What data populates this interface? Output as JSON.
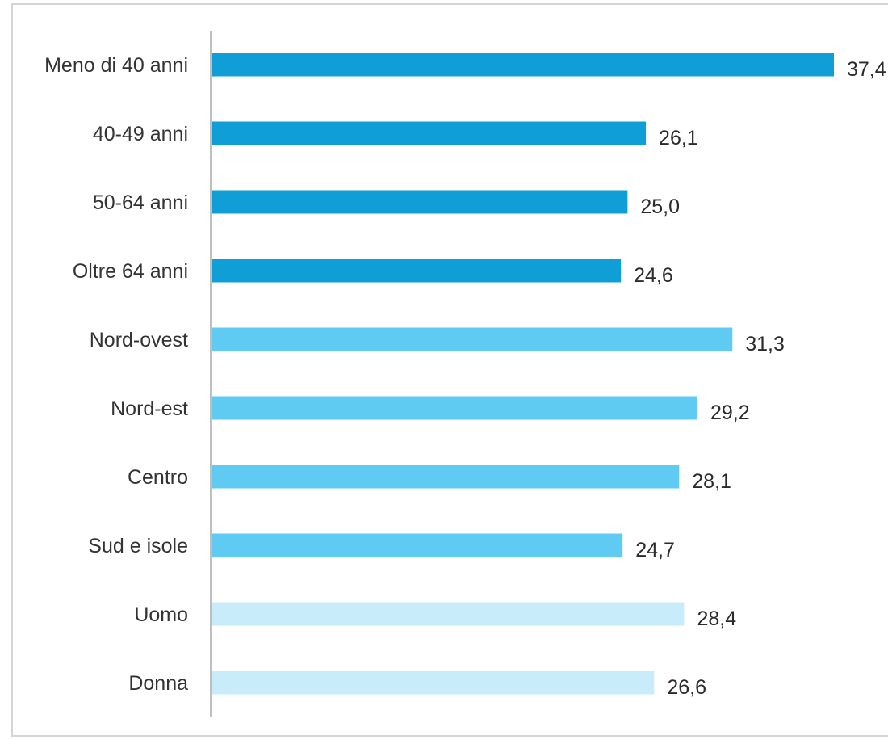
{
  "chart_data": {
    "type": "bar",
    "orientation": "horizontal",
    "title": "",
    "xlabel": "",
    "ylabel": "",
    "xlim": [
      0,
      37.4
    ],
    "grid": false,
    "legend": "none",
    "categories": [
      "Meno di 40 anni",
      "40-49 anni",
      "50-64 anni",
      "Oltre 64 anni",
      "Nord-ovest",
      "Nord-est",
      "Centro",
      "Sud e isole",
      "Uomo",
      "Donna"
    ],
    "values": [
      37.4,
      26.1,
      25.0,
      24.6,
      31.3,
      29.2,
      28.1,
      24.7,
      28.4,
      26.6
    ],
    "value_labels": [
      "37,4",
      "26,1",
      "25,0",
      "24,6",
      "31,3",
      "29,2",
      "28,1",
      "24,7",
      "28,4",
      "26,6"
    ],
    "group_colors": [
      "#0f9fd6",
      "#0f9fd6",
      "#0f9fd6",
      "#0f9fd6",
      "#5fcbf3",
      "#5fcbf3",
      "#5fcbf3",
      "#5fcbf3",
      "#c9ecfa",
      "#c9ecfa"
    ],
    "axis_color": "#bfbfbf",
    "frame_color": "#d4d4d4"
  }
}
